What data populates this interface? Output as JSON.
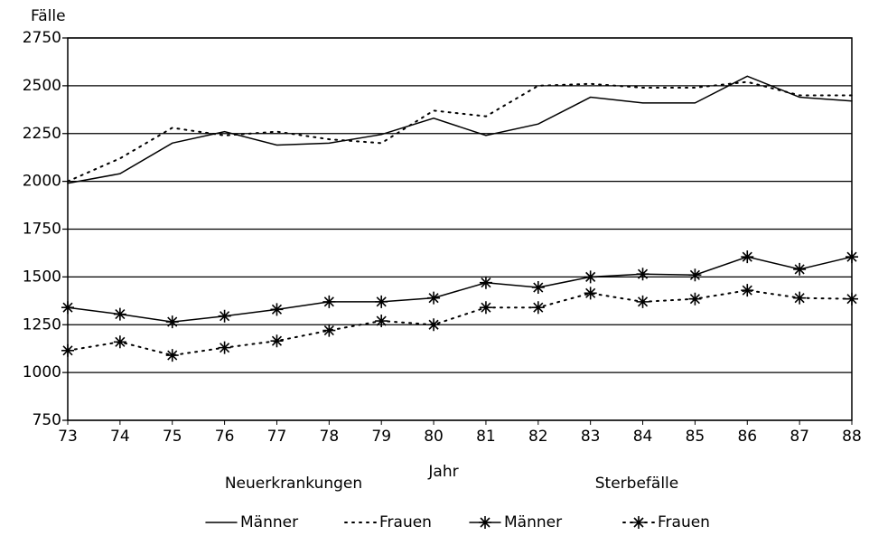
{
  "chart_data": {
    "type": "line",
    "ylabel": "Fälle",
    "xlabel": "Jahr",
    "categories": [
      "73",
      "74",
      "75",
      "76",
      "77",
      "78",
      "79",
      "80",
      "81",
      "82",
      "83",
      "84",
      "85",
      "86",
      "87",
      "88"
    ],
    "ylim": [
      750,
      2750
    ],
    "yticks": [
      750,
      1000,
      1250,
      1500,
      1750,
      2000,
      2250,
      2500,
      2750
    ],
    "grid": true,
    "legend_groups": [
      {
        "name": "Neuerkrankungen",
        "series": [
          0,
          1
        ]
      },
      {
        "name": "Sterbefälle",
        "series": [
          2,
          3
        ]
      }
    ],
    "series": [
      {
        "name": "Männer",
        "color": "#000000",
        "style": "solid",
        "values": [
          1990,
          2040,
          2200,
          2260,
          2190,
          2200,
          2245,
          2330,
          2240,
          2300,
          2440,
          2410,
          2410,
          2550,
          2440,
          2420
        ]
      },
      {
        "name": "Frauen",
        "color": "#000000",
        "style": "dotted",
        "values": [
          2000,
          2120,
          2280,
          2240,
          2260,
          2220,
          2200,
          2370,
          2340,
          2500,
          2510,
          2490,
          2490,
          2520,
          2450,
          2450
        ]
      },
      {
        "name": "Männer",
        "color": "#000000",
        "style": "solid",
        "marker": "star",
        "values": [
          1340,
          1305,
          1265,
          1295,
          1330,
          1370,
          1370,
          1390,
          1470,
          1445,
          1500,
          1515,
          1510,
          1605,
          1540,
          1605
        ]
      },
      {
        "name": "Frauen",
        "color": "#000000",
        "style": "dotted",
        "marker": "star",
        "values": [
          1115,
          1160,
          1090,
          1130,
          1165,
          1220,
          1270,
          1250,
          1340,
          1340,
          1415,
          1370,
          1385,
          1430,
          1390,
          1385
        ]
      }
    ]
  }
}
